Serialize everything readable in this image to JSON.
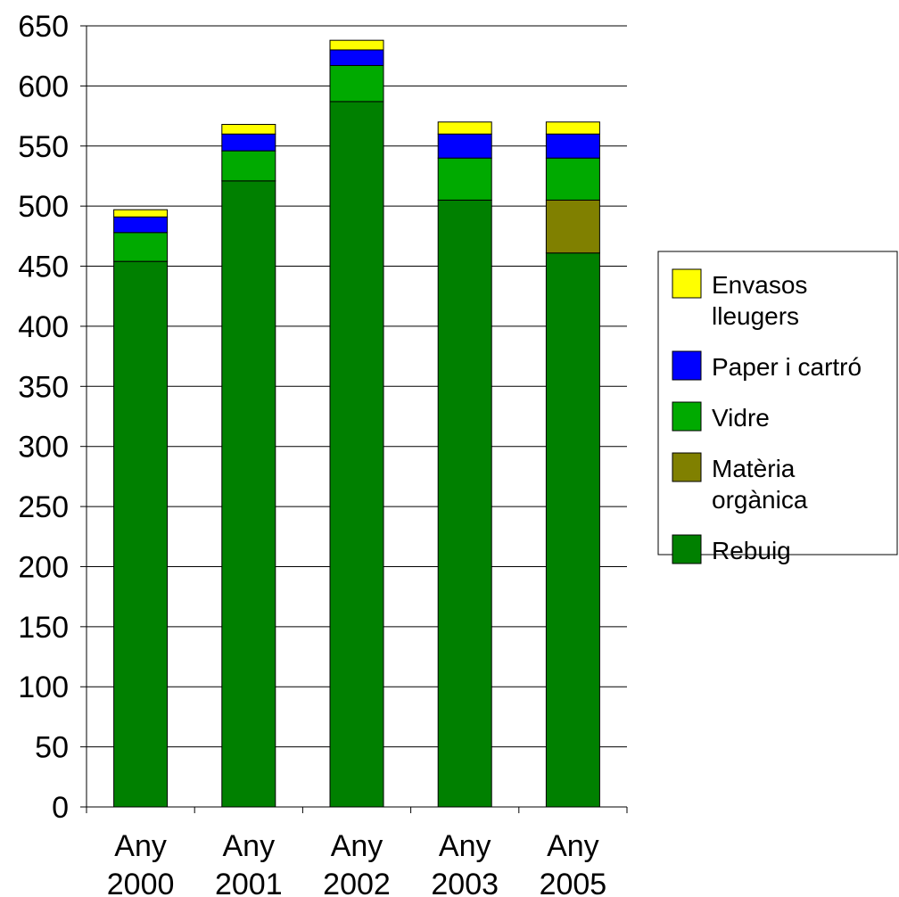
{
  "chart_data": {
    "type": "bar",
    "stacked": true,
    "title": "",
    "xlabel": "",
    "ylabel": "",
    "ylim": [
      0,
      650
    ],
    "yticks": [
      0,
      50,
      100,
      150,
      200,
      250,
      300,
      350,
      400,
      450,
      500,
      550,
      600,
      650
    ],
    "grid": true,
    "legend_position": "right",
    "categories": [
      [
        "Any",
        "2000"
      ],
      [
        "Any",
        "2001"
      ],
      [
        "Any",
        "2002"
      ],
      [
        "Any",
        "2003"
      ],
      [
        "Any",
        "2005"
      ]
    ],
    "series": [
      {
        "name": "Rebuig",
        "color": "#008000",
        "values": [
          454,
          521,
          587,
          505,
          461
        ]
      },
      {
        "name": "Matèria orgànica",
        "color": "#808000",
        "values": [
          0,
          0,
          0,
          0,
          44
        ]
      },
      {
        "name": "Vidre",
        "color": "#00aa00",
        "values": [
          24,
          25,
          30,
          35,
          35
        ]
      },
      {
        "name": "Paper i cartró",
        "color": "#0000ff",
        "values": [
          13,
          14,
          13,
          20,
          20
        ]
      },
      {
        "name": "Envasos lleugers",
        "color": "#ffff00",
        "values": [
          6,
          8,
          8,
          10,
          10
        ]
      }
    ],
    "legend": [
      {
        "series": "Envasos lleugers",
        "lines": [
          "Envasos",
          "lleugers"
        ]
      },
      {
        "series": "Paper i cartró",
        "lines": [
          "Paper i cartró"
        ]
      },
      {
        "series": "Vidre",
        "lines": [
          "Vidre"
        ]
      },
      {
        "series": "Matèria orgànica",
        "lines": [
          "Matèria",
          "orgànica"
        ]
      },
      {
        "series": "Rebuig",
        "lines": [
          "Rebuig"
        ]
      }
    ]
  }
}
